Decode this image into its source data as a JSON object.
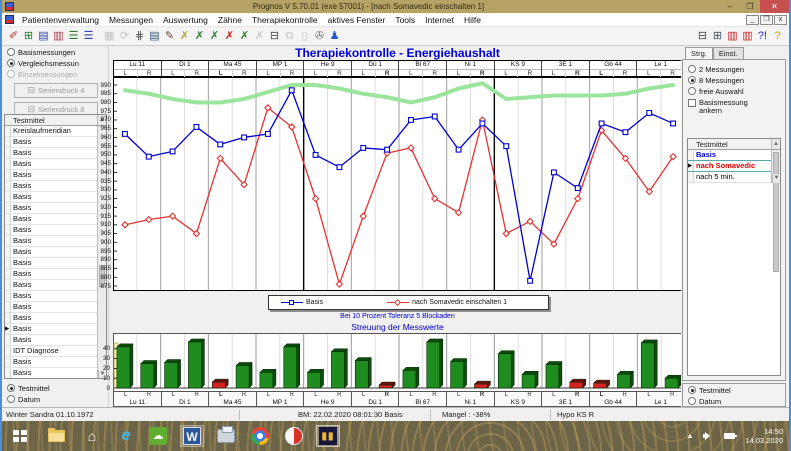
{
  "window": {
    "title": "Prognos V 5.70.01  (exe 57001) - [nach Somavedic einschalten 1]",
    "controls": {
      "minimize": "–",
      "restore": "❐",
      "close": "✕"
    },
    "mdi_controls": {
      "minimize": "_",
      "restore": "❐",
      "close": "x"
    }
  },
  "menu": {
    "items": [
      "Patientenverwaltung",
      "Messungen",
      "Auswertung",
      "Zähne",
      "Therapiekontrolle",
      "aktives Fenster",
      "Tools",
      "Internet",
      "Hilfe"
    ]
  },
  "toolbar": {
    "left_icons": [
      {
        "name": "pen-erase-icon",
        "glyph": "✐",
        "color": "#b03434",
        "disabled": false
      },
      {
        "name": "color-grid-icon",
        "glyph": "⊞",
        "color": "#2b7d2b",
        "disabled": false
      },
      {
        "name": "chart-window-icon",
        "glyph": "▤",
        "color": "#3344aa",
        "disabled": false
      },
      {
        "name": "chart-compare-icon",
        "glyph": "▥",
        "color": "#aa3344",
        "disabled": false
      },
      {
        "name": "list-colored-icon",
        "glyph": "☰",
        "color": "#2b7d2b",
        "disabled": false
      },
      {
        "name": "list-blue-icon",
        "glyph": "☰",
        "color": "#3344aa",
        "disabled": false
      },
      {
        "name": "separator",
        "glyph": "",
        "color": "#000",
        "disabled": false
      },
      {
        "name": "save-icon",
        "glyph": "▦",
        "color": "#888888",
        "disabled": true
      },
      {
        "name": "refresh-icon",
        "glyph": "⟳",
        "color": "#888888",
        "disabled": true
      },
      {
        "name": "measure-ruler-icon",
        "glyph": "⋕",
        "color": "#555555",
        "disabled": false
      },
      {
        "name": "chart-mini-icon",
        "glyph": "▤",
        "color": "#335577",
        "disabled": false
      },
      {
        "name": "doc-edit-icon",
        "glyph": "✎",
        "color": "#774433",
        "disabled": false
      },
      {
        "name": "needle-yellow-icon",
        "glyph": "✗",
        "color": "#a8a820",
        "disabled": false
      },
      {
        "name": "needle-green-icon",
        "glyph": "✗",
        "color": "#2b7d2b",
        "disabled": false
      },
      {
        "name": "needle-green2-icon",
        "glyph": "✗",
        "color": "#2b7d2b",
        "disabled": false
      },
      {
        "name": "needle-red-icon",
        "glyph": "✗",
        "color": "#cc2222",
        "disabled": false
      },
      {
        "name": "needle-green3-icon",
        "glyph": "✗",
        "color": "#2b7d2b",
        "disabled": false
      },
      {
        "name": "needle-gray-icon",
        "glyph": "✗",
        "color": "#999999",
        "disabled": true
      },
      {
        "name": "printer-icon",
        "glyph": "⊟",
        "color": "#444444",
        "disabled": false
      },
      {
        "name": "copy-icon",
        "glyph": "⧉",
        "color": "#888888",
        "disabled": true
      },
      {
        "name": "paste-icon",
        "glyph": "▯",
        "color": "#888888",
        "disabled": true
      },
      {
        "name": "link-icon",
        "glyph": "✇",
        "color": "#777777",
        "disabled": false
      },
      {
        "name": "person-icon",
        "glyph": "♟",
        "color": "#2255cc",
        "disabled": false
      }
    ],
    "right_icons": [
      {
        "name": "printer-icon",
        "glyph": "⊟",
        "color": "#444444",
        "disabled": false
      },
      {
        "name": "printer-export-icon",
        "glyph": "⊞",
        "color": "#445566",
        "disabled": false
      },
      {
        "name": "report-red-icon",
        "glyph": "▥",
        "color": "#cc2222",
        "disabled": false
      },
      {
        "name": "report-red2-icon",
        "glyph": "▥",
        "color": "#cc2222",
        "disabled": false
      },
      {
        "name": "help-context-icon",
        "glyph": "?!",
        "color": "#2233cc",
        "disabled": false
      },
      {
        "name": "help-icon",
        "glyph": "?",
        "color": "#e0a000",
        "disabled": false
      }
    ]
  },
  "left_panel": {
    "radios": [
      {
        "label": "Basismessungen",
        "checked": false,
        "disabled": false
      },
      {
        "label": "Vergleichsmessun",
        "checked": true,
        "disabled": false
      },
      {
        "label": "Einzelmessungen",
        "checked": false,
        "disabled": true
      }
    ],
    "buttons": [
      {
        "label": "Seriendruck 4",
        "icon": "printer-icon",
        "glyph": "⊟",
        "disabled": true
      },
      {
        "label": "Seriendruck 8",
        "icon": "printer-icon",
        "glyph": "⊟",
        "disabled": true
      }
    ],
    "table_header": "Testmittel",
    "rows": [
      "Kreislaufmeridian",
      "Basis",
      "Basis",
      "Basis",
      "Basis",
      "Basis",
      "Basis",
      "Basis",
      "Basis",
      "Basis",
      "Basis",
      "Basis",
      "Basis",
      "Basis",
      "Basis",
      "Basis",
      "Basis",
      "Basis",
      "Basis",
      "Basis",
      "IDT Diagnose",
      "Basis",
      "Basis"
    ],
    "marker_row_index": 18,
    "bottom_radios": [
      {
        "label": "Testmittel",
        "checked": true,
        "disabled": false
      },
      {
        "label": "Datum",
        "checked": false,
        "disabled": false
      }
    ]
  },
  "right_panel": {
    "tabs": [
      {
        "label": "Strg.",
        "active": true
      },
      {
        "label": "Einst.",
        "active": false
      }
    ],
    "radios": [
      {
        "label": "2 Messungen",
        "checked": false,
        "disabled": false
      },
      {
        "label": "8 Messungen",
        "checked": true,
        "disabled": false
      },
      {
        "label": "freie Auswahl",
        "checked": false,
        "disabled": false
      }
    ],
    "checkbox": {
      "label": "Basismessung ankern",
      "checked": false
    },
    "table_header": "Testmittel",
    "rows": [
      {
        "label": "Basis",
        "color": "#0000cc",
        "bold": true,
        "marker": false
      },
      {
        "label": "nach Somavedic",
        "color": "#dd0000",
        "bold": true,
        "marker": true
      },
      {
        "label": "nach 5 min.",
        "color": "#000000",
        "bold": false,
        "marker": false
      }
    ],
    "bottom_radios": [
      {
        "label": "Testmittel",
        "checked": true,
        "disabled": false
      },
      {
        "label": "Datum",
        "checked": false,
        "disabled": false
      }
    ]
  },
  "main": {
    "title": "Therapiekontrolle - Energiehaushalt",
    "note": "Bei 10 Prozent Toleranz 5 Blockaden",
    "subtitle": "Streuung der Messwerte"
  },
  "chart_data": [
    {
      "type": "line",
      "title": "Therapiekontrolle - Energiehaushalt",
      "meridians": [
        {
          "name": "Lu 11",
          "l_red": false,
          "r_red": false
        },
        {
          "name": "Di 1",
          "l_red": false,
          "r_red": false
        },
        {
          "name": "Ma 45",
          "l_red": true,
          "r_red": false
        },
        {
          "name": "MP 1",
          "l_red": false,
          "r_red": false
        },
        {
          "name": "He 9",
          "l_red": false,
          "r_red": false
        },
        {
          "name": "Dü 1",
          "l_red": false,
          "r_red": true
        },
        {
          "name": "Bl 67",
          "l_red": false,
          "r_red": false
        },
        {
          "name": "Ni 1",
          "l_red": false,
          "r_red": true
        },
        {
          "name": "KS 9",
          "l_red": false,
          "r_red": false
        },
        {
          "name": "3E 1",
          "l_red": false,
          "r_red": true
        },
        {
          "name": "Gb 44",
          "l_red": true,
          "r_red": false
        },
        {
          "name": "Le 1",
          "l_red": false,
          "r_red": false
        }
      ],
      "categories": [
        "Lu 11 L",
        "Lu 11 R",
        "Di 1 L",
        "Di 1 R",
        "Ma 45 L",
        "Ma 45 R",
        "MP 1 L",
        "MP 1 R",
        "He 9 L",
        "He 9 R",
        "Dü 1 L",
        "Dü 1 R",
        "Bl 67 L",
        "Bl 67 R",
        "Ni 1 L",
        "Ni 1 R",
        "KS 9 L",
        "KS 9 R",
        "3E 1 L",
        "3E 1 R",
        "Gb 44 L",
        "Gb 44 R",
        "Le 1 L",
        "Le 1 R"
      ],
      "ylim": [
        875,
        990
      ],
      "ytick_step": 5,
      "grid": "vertical-only",
      "group_separators": [
        8,
        16
      ],
      "series": [
        {
          "id": "green-reference",
          "name": "",
          "legend": false,
          "color": "#9be49b",
          "marker": "none",
          "values": [
            987,
            985,
            982,
            980,
            980,
            982,
            986,
            990,
            990,
            988,
            985,
            983,
            980,
            983,
            988,
            991,
            982,
            983,
            984,
            984,
            984,
            985,
            988,
            990
          ]
        },
        {
          "id": "somavedic",
          "name": "nach Somavedic einschalten 1",
          "legend": true,
          "color": "#e23333",
          "marker": "diamond",
          "values": [
            910,
            913,
            915,
            905,
            948,
            933,
            977,
            966,
            925,
            876,
            915,
            951,
            954,
            925,
            917,
            970,
            905,
            912,
            899,
            925,
            964,
            948,
            929,
            949
          ]
        },
        {
          "id": "basis",
          "name": "Basis",
          "legend": true,
          "color": "#0000cc",
          "marker": "square",
          "values": [
            962,
            949,
            952,
            966,
            956,
            960,
            962,
            987,
            950,
            943,
            954,
            953,
            970,
            972,
            953,
            968,
            955,
            878,
            940,
            931,
            968,
            963,
            974,
            968
          ]
        }
      ],
      "legend_order": [
        "Basis",
        "nach Somavedic einschalten 1"
      ],
      "legend_position": "below"
    },
    {
      "type": "bar",
      "title": "Streuung der Messwerte",
      "categories": [
        "Lu 11 L",
        "Lu 11 R",
        "Di 1 L",
        "Di 1 R",
        "Ma 45 L",
        "Ma 45 R",
        "MP 1 L",
        "MP 1 R",
        "He 9 L",
        "He 9 R",
        "Dü 1 L",
        "Dü 1 R",
        "Bl 67 L",
        "Bl 67 R",
        "Ni 1 L",
        "Ni 1 R",
        "KS 9 L",
        "KS 9 R",
        "3E 1 L",
        "3E 1 R",
        "Gb 44 L",
        "Gb 44 R",
        "Le 1 L",
        "Le 1 R"
      ],
      "values": [
        42,
        25,
        26,
        47,
        6,
        23,
        16,
        42,
        16,
        37,
        28,
        3,
        18,
        47,
        27,
        4,
        35,
        14,
        24,
        6,
        5,
        14,
        46,
        10
      ],
      "red_indices": [
        4,
        11,
        15,
        19,
        20
      ],
      "bar_color_normal": "#1f8c1f",
      "bar_color_blocked": "#d62222",
      "ylim": [
        0,
        50
      ],
      "yticks": [
        0,
        10,
        20,
        30,
        40
      ]
    }
  ],
  "status_bar": {
    "segments": [
      "Winter Sandra 01.10.1972",
      "BM: 22.02.2020 08:01:30  Basis",
      "Mangel : -38%",
      "Hypo KS R"
    ]
  },
  "taskbar": {
    "icons": [
      {
        "name": "start-button",
        "type": "start"
      },
      {
        "name": "file-explorer-icon",
        "type": "folder"
      },
      {
        "name": "home-icon",
        "type": "glyph",
        "glyph": "⌂",
        "color": "#ffffff"
      },
      {
        "name": "internet-explorer-icon",
        "type": "glyph",
        "glyph": "e",
        "color": "#45b4e8"
      },
      {
        "name": "green-cloud-app-icon",
        "type": "green"
      },
      {
        "name": "word-icon",
        "type": "word",
        "letter": "W",
        "framed": true
      },
      {
        "name": "printer-app-icon",
        "type": "print"
      },
      {
        "name": "chrome-icon",
        "type": "chrome"
      },
      {
        "name": "shield-app-icon",
        "type": "shield"
      },
      {
        "name": "prognos-app-icon",
        "type": "prognos",
        "letter": "▮▮",
        "active": true
      }
    ],
    "tray": {
      "time": "14:50",
      "date": "14.03.2020"
    }
  }
}
